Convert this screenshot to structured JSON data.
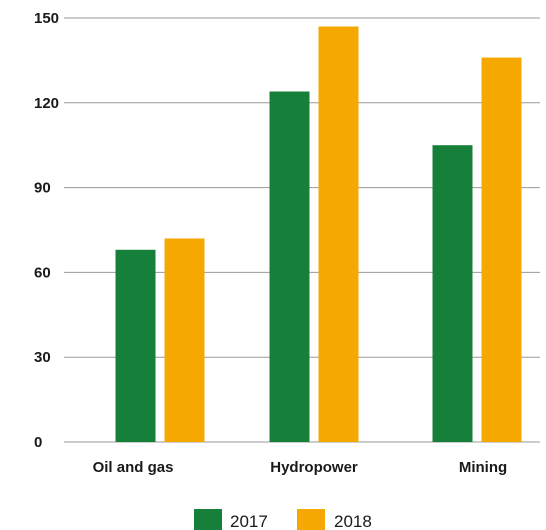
{
  "chart_data": {
    "type": "bar",
    "categories": [
      "Oil and gas",
      "Hydropower",
      "Mining"
    ],
    "series": [
      {
        "name": "2017",
        "values": [
          68,
          124,
          105
        ],
        "color": "#16803a"
      },
      {
        "name": "2018",
        "values": [
          72,
          147,
          136
        ],
        "color": "#f4a800"
      }
    ],
    "yticks": [
      0,
      30,
      60,
      90,
      120,
      150
    ],
    "ylim": [
      0,
      150
    ],
    "grid": true,
    "legend": "bottom-center"
  }
}
